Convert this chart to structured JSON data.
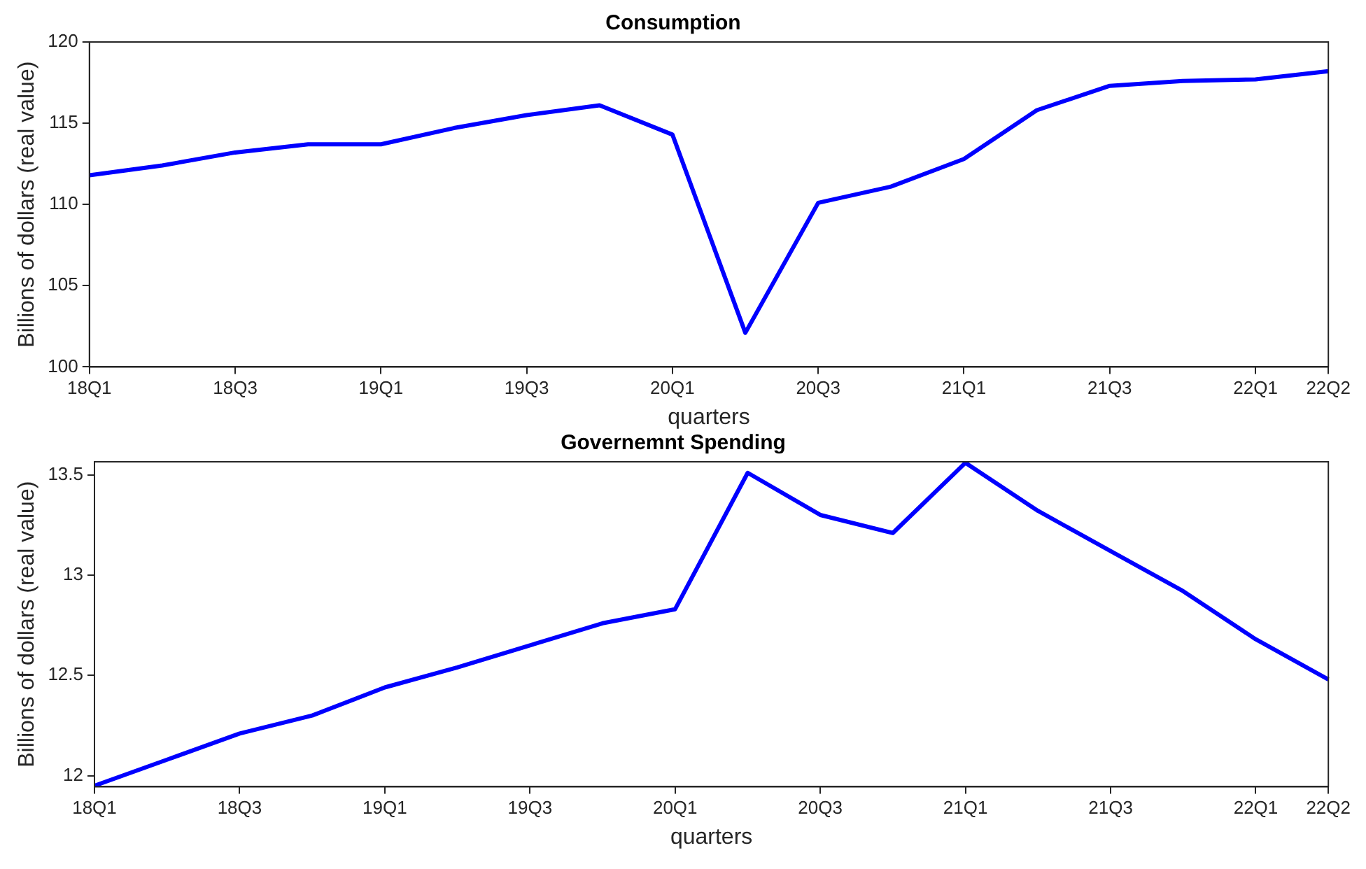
{
  "chart_data": [
    {
      "type": "line",
      "title": "Consumption",
      "xlabel": "quarters",
      "ylabel": "Billions of dollars (real value)",
      "categories": [
        "18Q1",
        null,
        "18Q3",
        null,
        "19Q1",
        null,
        "19Q3",
        null,
        "20Q1",
        null,
        "20Q3",
        null,
        "21Q1",
        null,
        "21Q3",
        null,
        "22Q1",
        "22Q2"
      ],
      "series": [
        {
          "color": "#0000ff",
          "values": [
            111.8,
            112.4,
            113.2,
            113.7,
            113.7,
            114.7,
            115.5,
            116.1,
            114.3,
            102.1,
            110.1,
            111.1,
            112.8,
            115.8,
            117.3,
            117.6,
            117.7,
            118.2
          ]
        }
      ],
      "ylim": [
        100,
        120
      ],
      "yticks": [
        100,
        105,
        110,
        115,
        120
      ],
      "marker": "none",
      "line_style": "solid"
    },
    {
      "type": "line",
      "title": "Governemnt Spending",
      "xlabel": "quarters",
      "ylabel": "Billions of dollars (real value)",
      "categories": [
        "18Q1",
        null,
        "18Q3",
        null,
        "19Q1",
        null,
        "19Q3",
        null,
        "20Q1",
        null,
        "20Q3",
        null,
        "21Q1",
        null,
        "21Q3",
        null,
        "22Q1",
        "22Q2"
      ],
      "series": [
        {
          "color": "#0000ff",
          "values": [
            11.95,
            12.08,
            12.21,
            12.3,
            12.44,
            12.54,
            12.65,
            12.76,
            12.83,
            13.51,
            13.3,
            13.21,
            13.56,
            13.32,
            13.12,
            12.92,
            12.68,
            12.48
          ]
        }
      ],
      "ylim": [
        11.945,
        13.565
      ],
      "yticks": [
        12,
        12.5,
        13,
        13.5
      ],
      "marker": "none",
      "line_style": "solid"
    }
  ]
}
